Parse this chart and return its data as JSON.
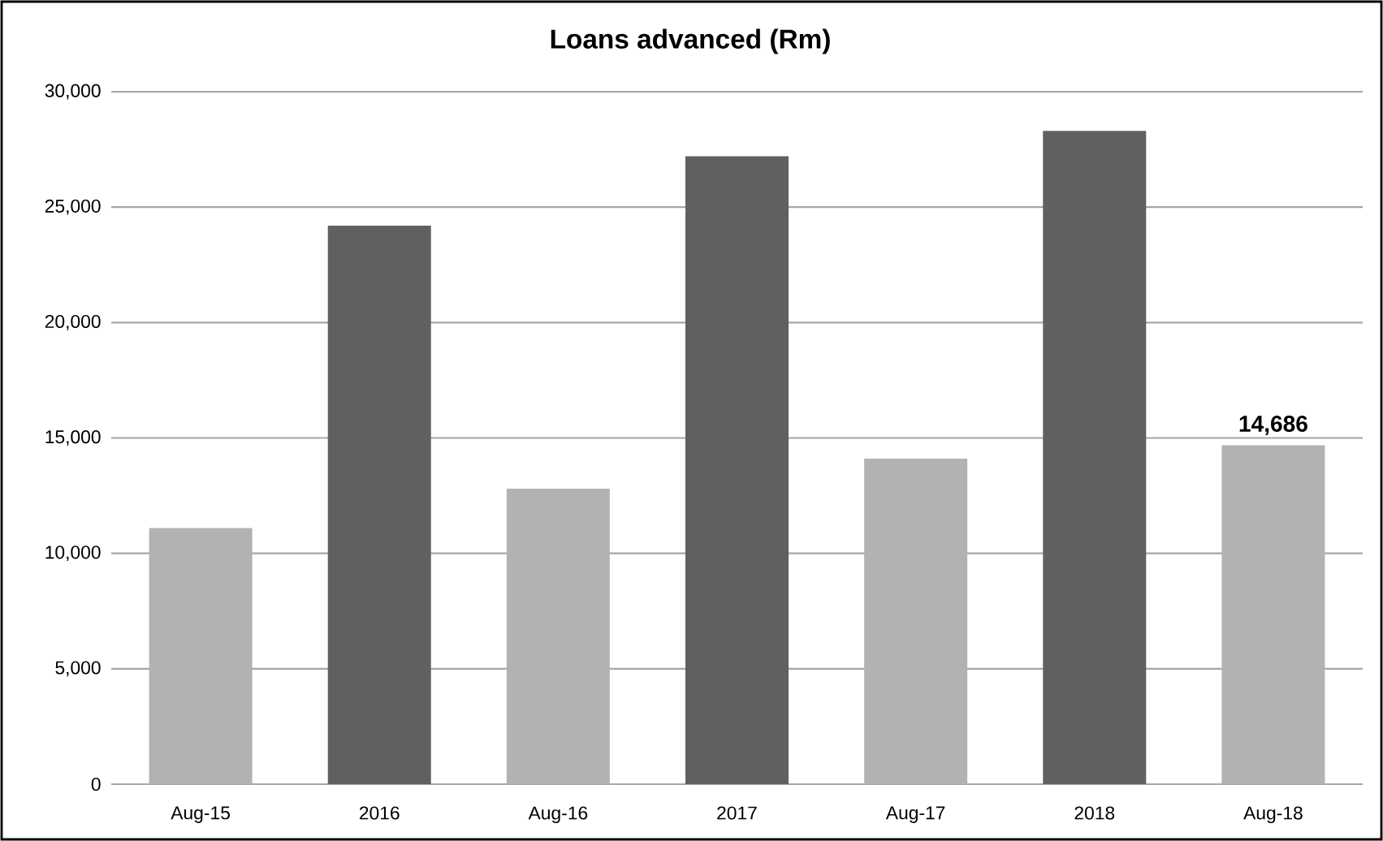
{
  "chart_data": {
    "type": "bar",
    "title": "Loans advanced (Rm)",
    "categories": [
      "Aug-15",
      "2016",
      "Aug-16",
      "2017",
      "Aug-17",
      "2018",
      "Aug-18"
    ],
    "values": [
      11100,
      24200,
      12800,
      27200,
      14100,
      28300,
      14686
    ],
    "colors": [
      "#b2b2b2",
      "#606060",
      "#b2b2b2",
      "#606060",
      "#b2b2b2",
      "#606060",
      "#b2b2b2"
    ],
    "value_labels": [
      null,
      null,
      null,
      null,
      null,
      null,
      "14,686"
    ],
    "ylim": [
      0,
      30000
    ],
    "yticks": [
      {
        "value": 0,
        "label": "0"
      },
      {
        "value": 5000,
        "label": "5,000"
      },
      {
        "value": 10000,
        "label": "10,000"
      },
      {
        "value": 15000,
        "label": "15,000"
      },
      {
        "value": 20000,
        "label": "20,000"
      },
      {
        "value": 25000,
        "label": "25,000"
      },
      {
        "value": 30000,
        "label": "30,000"
      }
    ],
    "grid": "y"
  }
}
